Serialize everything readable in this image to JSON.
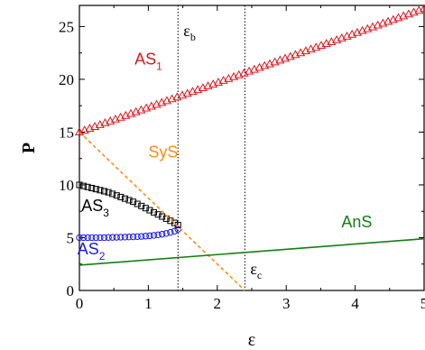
{
  "chart_data": {
    "type": "scatter",
    "xlabel": "ε",
    "ylabel": "P",
    "xlim": [
      0,
      5
    ],
    "ylim": [
      0,
      27
    ],
    "x_ticks": [
      0,
      1,
      2,
      3,
      4,
      5
    ],
    "y_ticks": [
      0,
      5,
      10,
      15,
      20,
      25
    ],
    "grid": false,
    "series": [
      {
        "name": "AS1",
        "style": "triangle",
        "color": "#e0141e",
        "x_start": 0,
        "x_end": 5,
        "points": 68,
        "y_start": 15.0,
        "y_end": 26.7
      },
      {
        "name": "AS3",
        "style": "square",
        "color": "#000000",
        "x": [
          0.0,
          0.06,
          0.12,
          0.18,
          0.24,
          0.3,
          0.36,
          0.42,
          0.48,
          0.54,
          0.6,
          0.66,
          0.72,
          0.78,
          0.84,
          0.9,
          0.96,
          1.02,
          1.08,
          1.14,
          1.2,
          1.26,
          1.32,
          1.38,
          1.43
        ],
        "y": [
          10.0,
          9.9,
          9.8,
          9.7,
          9.6,
          9.5,
          9.4,
          9.3,
          9.15,
          9.0,
          8.85,
          8.7,
          8.55,
          8.4,
          8.2,
          8.0,
          7.8,
          7.6,
          7.4,
          7.2,
          7.0,
          6.8,
          6.6,
          6.4,
          6.2
        ]
      },
      {
        "name": "AS2",
        "style": "circle",
        "color": "#1a1ae6",
        "x": [
          0.0,
          0.06,
          0.12,
          0.18,
          0.24,
          0.3,
          0.36,
          0.42,
          0.48,
          0.54,
          0.6,
          0.66,
          0.72,
          0.78,
          0.84,
          0.9,
          0.96,
          1.02,
          1.08,
          1.14,
          1.2,
          1.26,
          1.32,
          1.38,
          1.43
        ],
        "y": [
          5.0,
          5.0,
          5.0,
          5.0,
          5.0,
          5.0,
          5.0,
          5.02,
          5.03,
          5.04,
          5.05,
          5.06,
          5.07,
          5.08,
          5.1,
          5.12,
          5.15,
          5.18,
          5.22,
          5.27,
          5.33,
          5.4,
          5.5,
          5.62,
          5.8
        ]
      },
      {
        "name": "SyS",
        "style": "dashed-line",
        "color": "#ff8c1a",
        "x": [
          0,
          2.4
        ],
        "y": [
          15.0,
          0.0
        ]
      },
      {
        "name": "AnS",
        "style": "solid-line",
        "color": "#118011",
        "x": [
          0,
          5
        ],
        "y": [
          2.4,
          4.9
        ]
      }
    ],
    "vlines": [
      {
        "x": 1.43,
        "label": "ε",
        "sub": "b"
      },
      {
        "x": 2.4,
        "label": "ε",
        "sub": "c"
      }
    ],
    "annotations": [
      {
        "text": "AS",
        "sub": "1",
        "color": "#e0141e",
        "x": 0.8,
        "y": 21.4
      },
      {
        "text": "SyS",
        "color": "#ff8c1a",
        "x": 1.0,
        "y": 12.6
      },
      {
        "text": "AS",
        "sub": "3",
        "color": "#000000",
        "x": 0.03,
        "y": 7.5
      },
      {
        "text": "AS",
        "sub": "2",
        "color": "#1a1ae6",
        "x": -0.03,
        "y": 3.4
      },
      {
        "text": "AnS",
        "color": "#118011",
        "x": 3.8,
        "y": 6.0
      }
    ]
  }
}
